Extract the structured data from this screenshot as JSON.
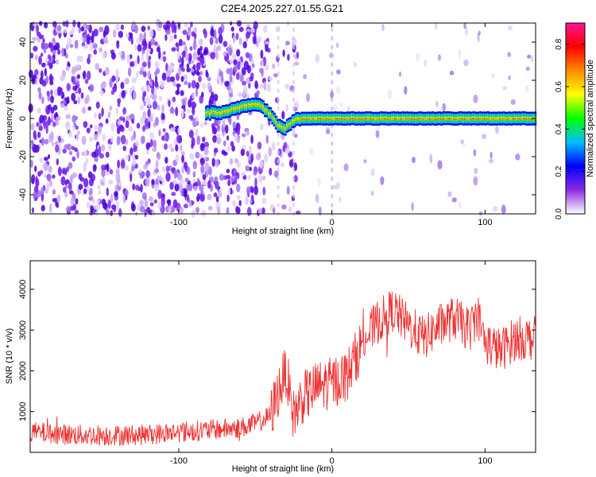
{
  "title": "C2E4.2025.227.01.55.G21",
  "colors": {
    "snr_series": "#ee3333",
    "colormap": [
      "#ffffff",
      "#8a2be2",
      "#0000ff",
      "#00bfff",
      "#00ff00",
      "#ffff00",
      "#ff8c00",
      "#ff0000",
      "#ff1493"
    ]
  },
  "chart_data": [
    {
      "type": "heatmap",
      "xlabel": "Height of straight line (km)",
      "ylabel": "Frequency (Hz)",
      "xlim": [
        -197,
        133
      ],
      "ylim": [
        -50,
        50
      ],
      "xticks": [
        -100,
        0,
        100
      ],
      "yticks": [
        -40,
        -20,
        0,
        20,
        40
      ],
      "grid": false,
      "description_of_values": "normalized spectral amplitude vs height and frequency",
      "ridge": {
        "x": [
          -80,
          -70,
          -60,
          -50,
          -45,
          -40,
          -35,
          -30,
          -25,
          -20,
          0,
          20,
          50,
          100,
          133
        ],
        "frequency": [
          3,
          3,
          6,
          8,
          6,
          2,
          -4,
          -5,
          -1,
          0,
          0,
          0,
          0,
          0,
          0
        ]
      },
      "colorbar": {
        "label": "Normalized spectral amplitude",
        "range": [
          0,
          0.9
        ],
        "ticks": [
          0.0,
          0.2,
          0.4,
          0.6,
          0.8
        ]
      }
    },
    {
      "type": "line",
      "xlabel": "Height of straight line (km)",
      "ylabel": "SNR (10 * v/v)",
      "xlim": [
        -197,
        133
      ],
      "ylim": [
        0,
        4700
      ],
      "xticks": [
        -100,
        0,
        100
      ],
      "yticks": [
        1000,
        2000,
        3000,
        4000
      ],
      "grid": false,
      "series": [
        {
          "x": [
            -197,
            -180,
            -160,
            -140,
            -120,
            -100,
            -80,
            -60,
            -50,
            -40,
            -35,
            -30,
            -25,
            -20,
            -10,
            0,
            10,
            20,
            30,
            40,
            50,
            60,
            70,
            80,
            90,
            95,
            100,
            110,
            120,
            133
          ],
          "values": [
            500,
            450,
            420,
            420,
            430,
            500,
            550,
            600,
            700,
            900,
            1500,
            2000,
            900,
            1300,
            1600,
            1700,
            1900,
            2700,
            3200,
            3500,
            3100,
            2800,
            3100,
            3300,
            3000,
            3400,
            2700,
            2500,
            2800,
            2800
          ]
        }
      ]
    }
  ]
}
